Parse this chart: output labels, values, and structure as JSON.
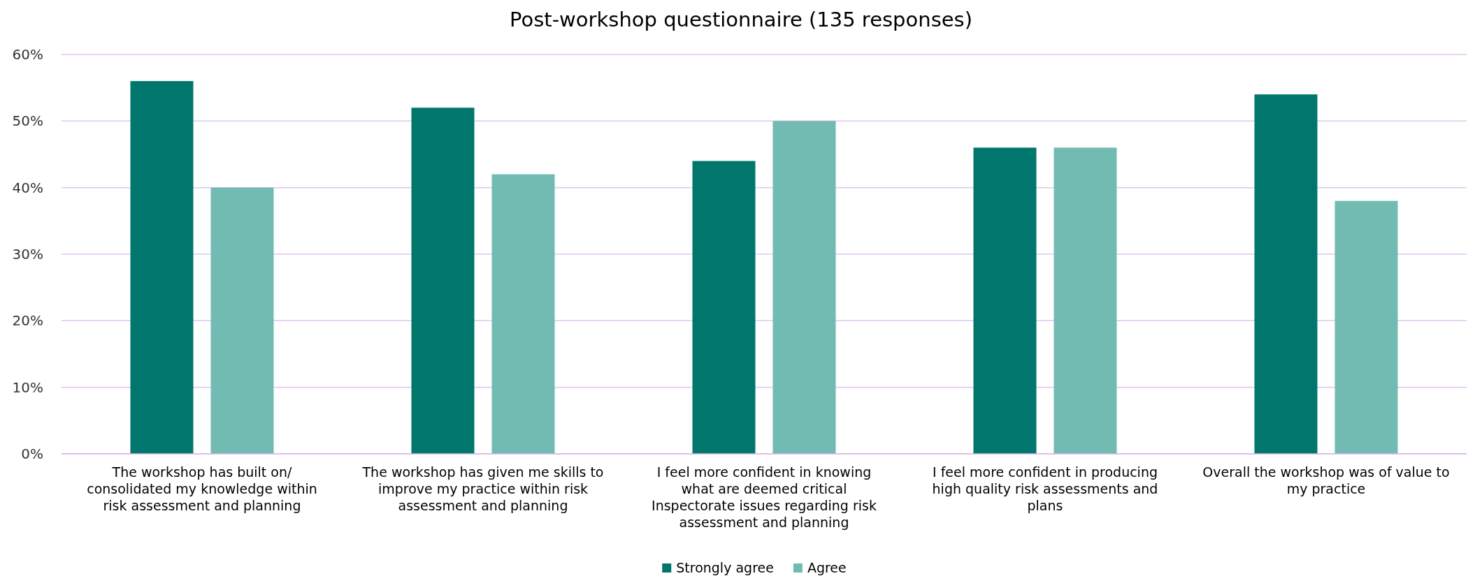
{
  "chart_data": {
    "type": "bar",
    "title": "Post-workshop questionnaire (135 responses)",
    "categories": [
      "The workshop has built on/ consolidated my knowledge within risk assessment and planning",
      "The workshop has given me skills to improve my practice within risk assessment and planning",
      "I feel more confident in knowing what are deemed critical Inspectorate issues regarding risk assessment and planning",
      "I feel more confident in producing high quality risk assessments and plans",
      "Overall the workshop was of value to my practice"
    ],
    "series": [
      {
        "name": "Strongly agree",
        "color": "#00766c",
        "values": [
          56,
          52,
          44,
          46,
          54
        ]
      },
      {
        "name": "Agree",
        "color": "#72bbb2",
        "values": [
          40,
          42,
          50,
          46,
          38
        ]
      }
    ],
    "ylim": [
      0,
      60
    ],
    "yticks": [
      {
        "value": 0,
        "label": "0%"
      },
      {
        "value": 10,
        "label": "10%"
      },
      {
        "value": 20,
        "label": "20%"
      },
      {
        "value": 30,
        "label": "30%"
      },
      {
        "value": 40,
        "label": "40%"
      },
      {
        "value": 50,
        "label": "50%"
      },
      {
        "value": 60,
        "label": "60%"
      }
    ],
    "grid": "y",
    "legend": "bottom"
  }
}
